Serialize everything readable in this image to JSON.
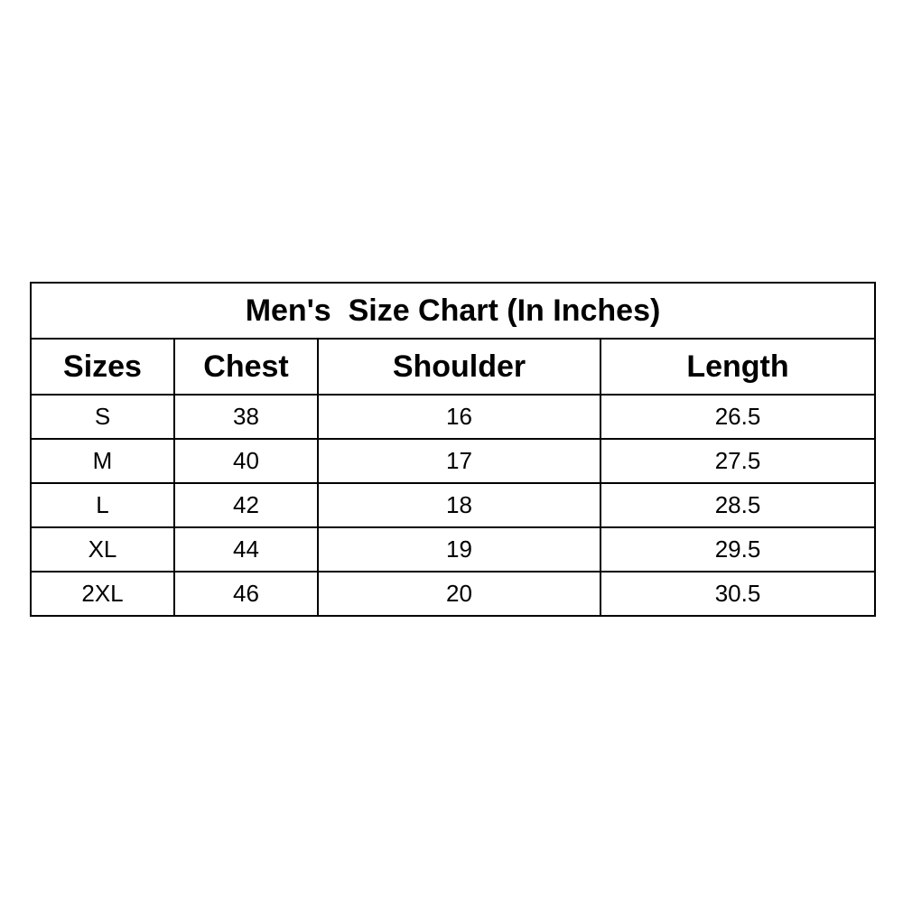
{
  "title": "Men's  Size Chart (In Inches)",
  "columns": [
    "Sizes",
    "Chest",
    "Shoulder",
    "Length"
  ],
  "rows": [
    [
      "S",
      "38",
      "16",
      "26.5"
    ],
    [
      "M",
      "40",
      "17",
      "27.5"
    ],
    [
      "L",
      "42",
      "18",
      "28.5"
    ],
    [
      "XL",
      "44",
      "19",
      "29.5"
    ],
    [
      "2XL",
      "46",
      "20",
      "30.5"
    ]
  ]
}
